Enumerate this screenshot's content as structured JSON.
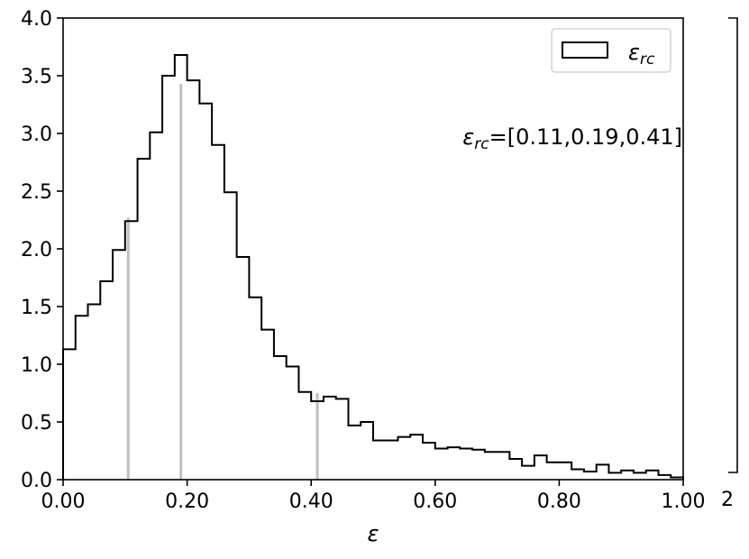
{
  "chart_data": {
    "type": "histogram",
    "title": "",
    "xlabel": "ε",
    "ylabel": "",
    "xlim": [
      0.0,
      1.0
    ],
    "ylim": [
      0.0,
      4.0
    ],
    "grid": false,
    "legend_position": "top-right",
    "x_ticks": [
      "0.00",
      "0.20",
      "0.40",
      "0.60",
      "0.80",
      "1.00"
    ],
    "y_ticks": [
      "0.0",
      "0.5",
      "1.0",
      "1.5",
      "2.0",
      "2.5",
      "3.0",
      "3.5",
      "4.0"
    ],
    "bin_width": 0.02,
    "bins_start": 0.0,
    "series": [
      {
        "name": "ε_rc",
        "color": "#000000",
        "values": [
          1.13,
          1.42,
          1.52,
          1.72,
          1.99,
          2.24,
          2.78,
          3.01,
          3.5,
          3.68,
          3.46,
          3.26,
          2.9,
          2.49,
          1.93,
          1.58,
          1.3,
          1.07,
          0.98,
          0.76,
          0.68,
          0.72,
          0.7,
          0.47,
          0.5,
          0.34,
          0.34,
          0.37,
          0.39,
          0.32,
          0.27,
          0.28,
          0.27,
          0.26,
          0.24,
          0.24,
          0.18,
          0.12,
          0.21,
          0.15,
          0.15,
          0.09,
          0.07,
          0.13,
          0.06,
          0.08,
          0.06,
          0.08,
          0.04,
          0.02
        ]
      }
    ],
    "vlines": {
      "color": "#c0c0c0",
      "x": [
        0.105,
        0.19,
        0.41
      ],
      "heights": [
        2.27,
        3.43,
        0.75
      ]
    },
    "annotation": {
      "symbol": "ε",
      "subscript": "rc",
      "rest": "=[0.11,0.19,0.41]"
    },
    "legend": [
      {
        "symbol": "ε",
        "subscript": "rc"
      }
    ],
    "side_label": "2"
  }
}
